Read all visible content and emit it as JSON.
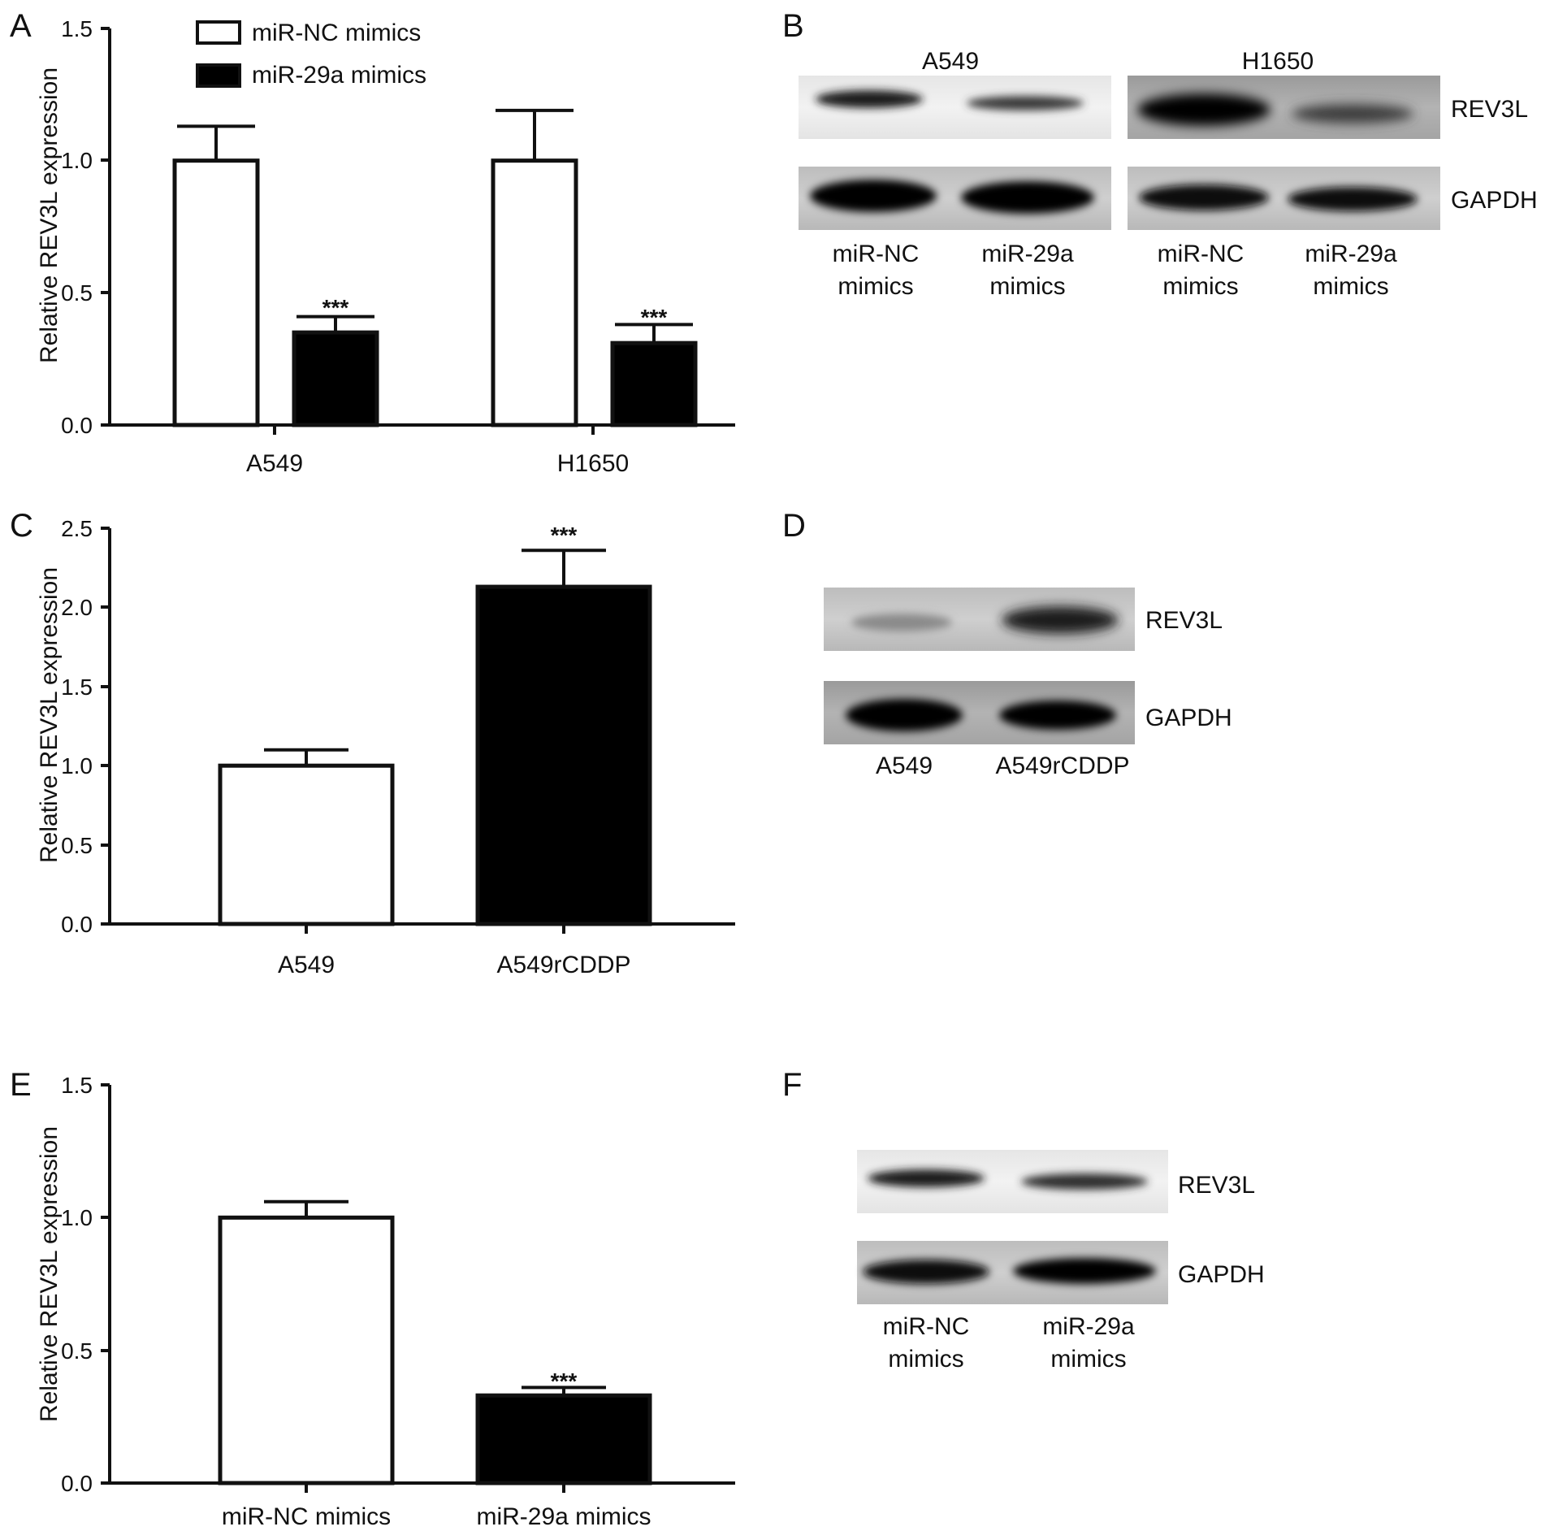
{
  "figure": {
    "panels": {
      "A": {
        "letter": "A"
      },
      "B": {
        "letter": "B",
        "cell_lines": [
          "A549",
          "H1650"
        ],
        "proteins": [
          "REV3L",
          "GAPDH"
        ],
        "lanes": [
          [
            "miR-NC",
            "mimics"
          ],
          [
            "miR-29a",
            "mimics"
          ],
          [
            "miR-NC",
            "mimics"
          ],
          [
            "miR-29a",
            "mimics"
          ]
        ]
      },
      "C": {
        "letter": "C"
      },
      "D": {
        "letter": "D",
        "proteins": [
          "REV3L",
          "GAPDH"
        ],
        "lanes": [
          "A549",
          "A549rCDDP"
        ]
      },
      "E": {
        "letter": "E"
      },
      "F": {
        "letter": "F",
        "proteins": [
          "REV3L",
          "GAPDH"
        ],
        "lanes": [
          [
            "miR-NC",
            "mimics"
          ],
          [
            "miR-29a",
            "mimics"
          ]
        ]
      }
    },
    "colors": {
      "white_bar": "#ffffff",
      "black_bar": "#000000",
      "axis": "#111111"
    }
  },
  "chart_data": [
    {
      "panel": "A",
      "type": "bar",
      "categories": [
        "A549",
        "H1650"
      ],
      "series": [
        {
          "name": "miR-NC mimics",
          "values": [
            1.0,
            1.0
          ],
          "errors": [
            0.13,
            0.19
          ],
          "fill": "white"
        },
        {
          "name": "miR-29a mimics",
          "values": [
            0.35,
            0.31
          ],
          "errors": [
            0.06,
            0.07
          ],
          "fill": "black"
        }
      ],
      "significance": [
        [
          "",
          "***"
        ],
        [
          "",
          "***"
        ]
      ],
      "ylabel": "Relative REV3L expression",
      "xlabel": "",
      "ylim": [
        0,
        1.5
      ],
      "yticks": [
        "0.0",
        "0.5",
        "1.0",
        "1.5"
      ],
      "legend": "top-left",
      "grid": false
    },
    {
      "panel": "C",
      "type": "bar",
      "categories": [
        "A549",
        "A549rCDDP"
      ],
      "series": [
        {
          "values": [
            1.0,
            2.13
          ],
          "errors": [
            0.1,
            0.23
          ],
          "fills": [
            "white",
            "black"
          ]
        }
      ],
      "significance": [
        "",
        "***"
      ],
      "ylabel": "Relative REV3L expression",
      "xlabel": "",
      "ylim": [
        0,
        2.5
      ],
      "yticks": [
        "0.0",
        "0.5",
        "1.0",
        "1.5",
        "2.0",
        "2.5"
      ],
      "grid": false
    },
    {
      "panel": "E",
      "type": "bar",
      "categories": [
        "miR-NC mimics",
        "miR-29a mimics"
      ],
      "series": [
        {
          "values": [
            1.0,
            0.33
          ],
          "errors": [
            0.06,
            0.03
          ],
          "fills": [
            "white",
            "black"
          ]
        }
      ],
      "significance": [
        "",
        "***"
      ],
      "ylabel": "Relative REV3L expression",
      "xlabel": "",
      "ylim": [
        0,
        1.5
      ],
      "yticks": [
        "0.0",
        "0.5",
        "1.0",
        "1.5"
      ],
      "grid": false
    }
  ]
}
